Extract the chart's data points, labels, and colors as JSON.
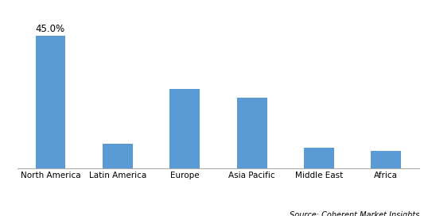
{
  "categories": [
    "North America",
    "Latin America",
    "Europe",
    "Asia Pacific",
    "Middle East",
    "Africa"
  ],
  "values": [
    45.0,
    8.5,
    27.0,
    24.0,
    7.0,
    6.0
  ],
  "bar_color": "#5b9bd5",
  "annotation": "45.0%",
  "annotation_bar_index": 0,
  "ylim": [
    0,
    52
  ],
  "source_text": "Source: Coherent Market Insights",
  "background_color": "#ffffff",
  "grid_color": "#d9d9d9",
  "bar_width": 0.45,
  "annotation_fontsize": 8.5,
  "tick_fontsize": 7.5,
  "source_fontsize": 7.0
}
